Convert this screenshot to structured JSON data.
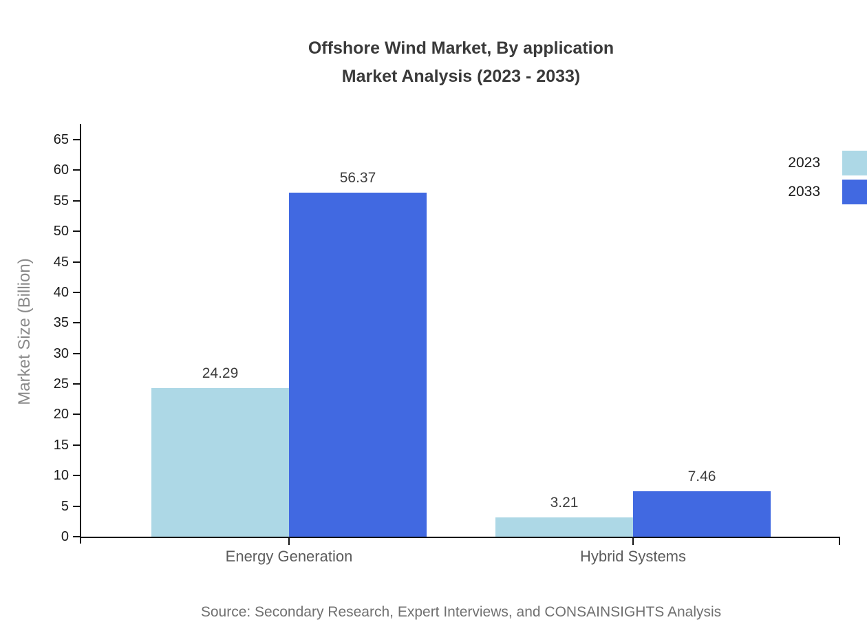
{
  "title": {
    "line1": "Offshore Wind Market, By application",
    "line2": "Market Analysis (2023 - 2033)"
  },
  "source": "Source: Secondary Research, Expert Interviews, and CONSAINSIGHTS Analysis",
  "colors": {
    "series_2023": "#ADD8E6",
    "series_2033": "#4169E1",
    "axis": "#111111",
    "title_text": "#3a3a3a",
    "category_label": "#5c5c5c",
    "axis_title": "#8a8a8a",
    "source_text": "#707070"
  },
  "chart_data": {
    "type": "bar",
    "title": "Offshore Wind Market, By application Market Analysis (2023 - 2033)",
    "categories": [
      "Energy Generation",
      "Hybrid Systems"
    ],
    "series": [
      {
        "name": "2023",
        "color": "#ADD8E6",
        "values": [
          24.29,
          3.21
        ]
      },
      {
        "name": "2033",
        "color": "#4169E1",
        "values": [
          56.37,
          7.46
        ]
      }
    ],
    "xlabel": "",
    "ylabel": "Market Size (Billion)",
    "ylim": [
      0,
      65
    ],
    "ytick_step": 5,
    "yticks": [
      0,
      5,
      10,
      15,
      20,
      25,
      30,
      35,
      40,
      45,
      50,
      55,
      60,
      65
    ],
    "grid": false,
    "legend_position": "top-right",
    "value_labels": true,
    "value_label_format": "2dp"
  }
}
